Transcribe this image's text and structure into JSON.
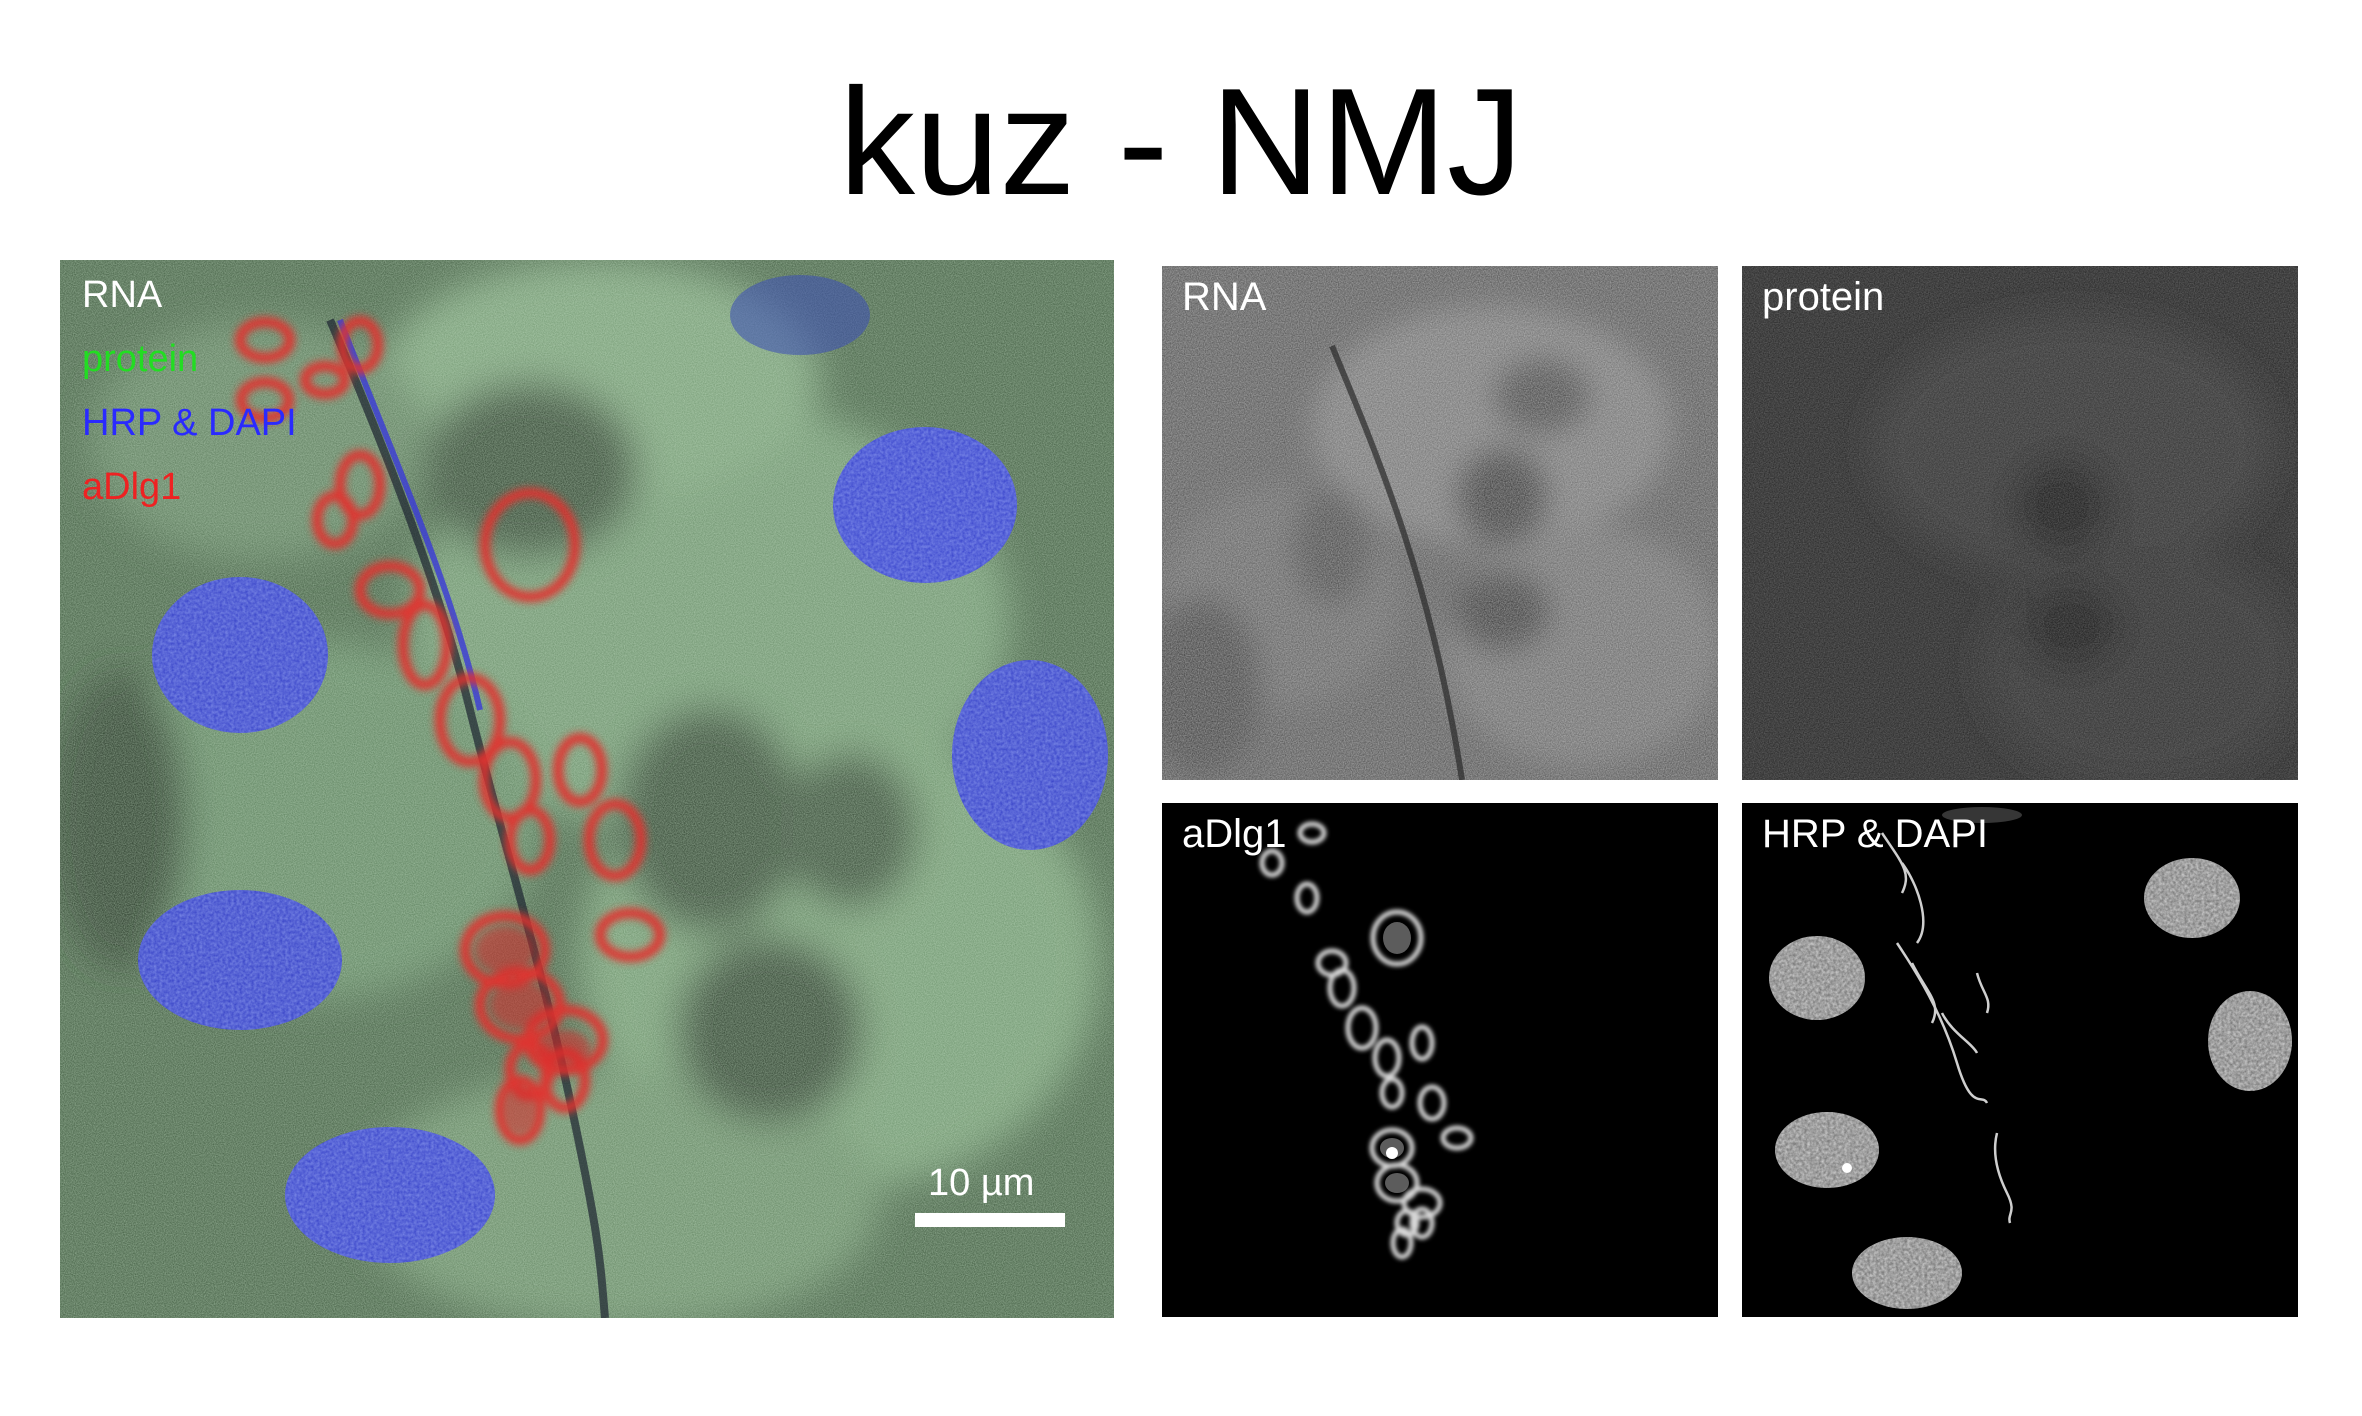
{
  "title": "kuz - NMJ",
  "merge": {
    "legend": [
      {
        "text": "RNA",
        "color": "#ffffff"
      },
      {
        "text": "protein",
        "color": "#22dd22"
      },
      {
        "text": "HRP & DAPI",
        "color": "#2a2aff"
      },
      {
        "text": "aDlg1",
        "color": "#ee2222"
      }
    ],
    "scale_bar_label": "10 µm"
  },
  "panels": {
    "rna": "RNA",
    "protein": "protein",
    "dlg": "aDlg1",
    "hrp": "HRP & DAPI"
  }
}
